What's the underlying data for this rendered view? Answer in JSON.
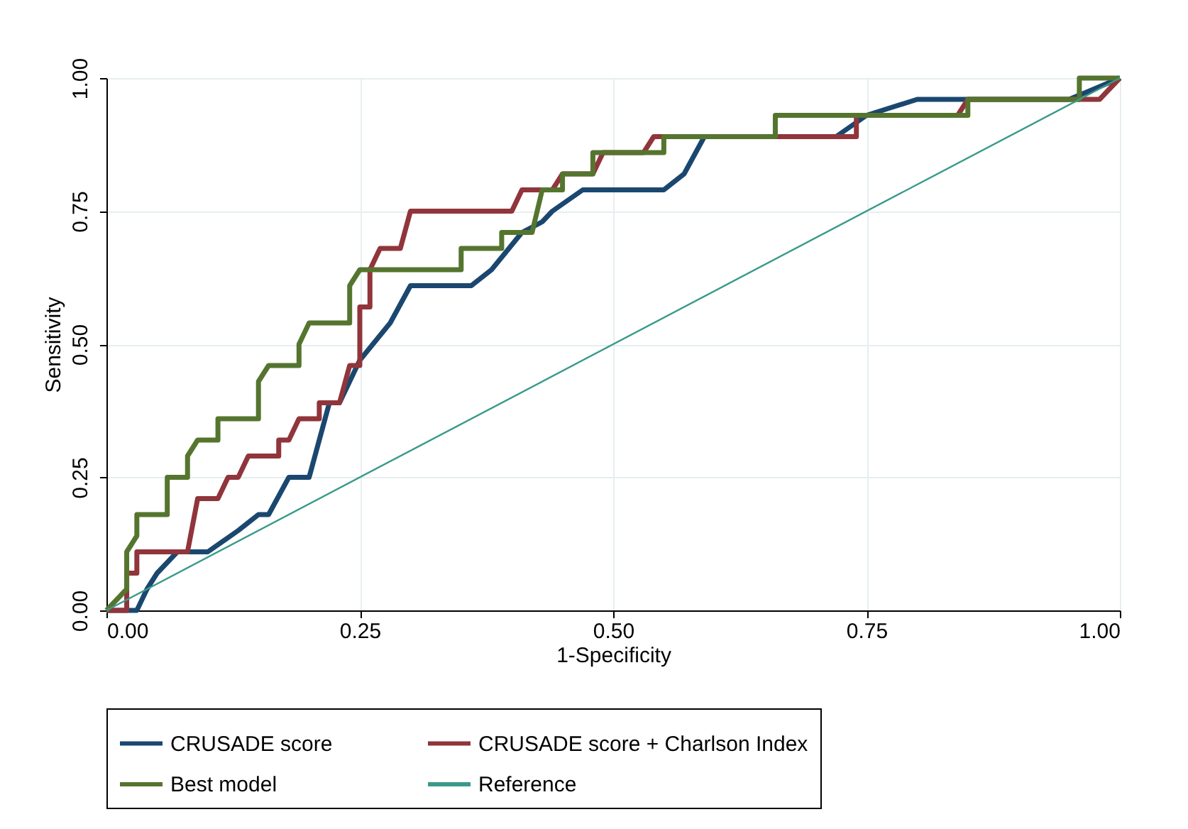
{
  "chart_data": {
    "type": "line",
    "xlabel": "1-Specificity",
    "ylabel": "Sensitivity",
    "xlim": [
      0,
      1
    ],
    "ylim": [
      0,
      1
    ],
    "xticks": [
      {
        "value": 0,
        "label": "0.00"
      },
      {
        "value": 0.25,
        "label": "0.25"
      },
      {
        "value": 0.5,
        "label": "0.50"
      },
      {
        "value": 0.75,
        "label": "0.75"
      },
      {
        "value": 1,
        "label": "1.00"
      }
    ],
    "yticks": [
      {
        "value": 0,
        "label": "0.00"
      },
      {
        "value": 0.25,
        "label": "0.25"
      },
      {
        "value": 0.5,
        "label": "0.50"
      },
      {
        "value": 0.75,
        "label": "0.75"
      },
      {
        "value": 1,
        "label": "1.00"
      }
    ],
    "grid": true,
    "legend": "bottom",
    "marker": "none",
    "line_style": "solid",
    "series": [
      {
        "name": "CRUSADE score",
        "color": "#1a476f",
        "x": [
          0,
          0.03,
          0.04,
          0.05,
          0.07,
          0.1,
          0.13,
          0.15,
          0.16,
          0.18,
          0.2,
          0.22,
          0.23,
          0.25,
          0.28,
          0.3,
          0.36,
          0.38,
          0.41,
          0.43,
          0.44,
          0.47,
          0.55,
          0.57,
          0.59,
          0.72,
          0.75,
          0.8,
          0.95,
          1
        ],
        "values": [
          0,
          0,
          0.04,
          0.07,
          0.11,
          0.11,
          0.15,
          0.18,
          0.18,
          0.25,
          0.25,
          0.39,
          0.39,
          0.47,
          0.54,
          0.61,
          0.61,
          0.64,
          0.71,
          0.73,
          0.75,
          0.79,
          0.79,
          0.82,
          0.89,
          0.89,
          0.93,
          0.96,
          0.96,
          1
        ]
      },
      {
        "name": "CRUSADE score + Charlson Index",
        "color": "#90353b",
        "x": [
          0,
          0.02,
          0.02,
          0.03,
          0.03,
          0.08,
          0.09,
          0.11,
          0.12,
          0.13,
          0.14,
          0.17,
          0.17,
          0.18,
          0.19,
          0.21,
          0.21,
          0.23,
          0.24,
          0.25,
          0.25,
          0.26,
          0.26,
          0.27,
          0.29,
          0.3,
          0.4,
          0.41,
          0.44,
          0.45,
          0.48,
          0.49,
          0.53,
          0.54,
          0.74,
          0.74,
          0.84,
          0.85,
          0.96,
          0.98,
          1
        ],
        "values": [
          0,
          0,
          0.07,
          0.07,
          0.11,
          0.11,
          0.21,
          0.21,
          0.25,
          0.25,
          0.29,
          0.29,
          0.32,
          0.32,
          0.36,
          0.36,
          0.39,
          0.39,
          0.46,
          0.46,
          0.57,
          0.57,
          0.64,
          0.68,
          0.68,
          0.75,
          0.75,
          0.79,
          0.79,
          0.82,
          0.82,
          0.86,
          0.86,
          0.89,
          0.89,
          0.93,
          0.93,
          0.96,
          0.96,
          0.96,
          1
        ]
      },
      {
        "name": "Best model",
        "color": "#55752f",
        "x": [
          0,
          0.02,
          0.02,
          0.03,
          0.03,
          0.06,
          0.06,
          0.08,
          0.08,
          0.09,
          0.11,
          0.11,
          0.15,
          0.15,
          0.16,
          0.19,
          0.19,
          0.2,
          0.24,
          0.24,
          0.25,
          0.35,
          0.35,
          0.39,
          0.39,
          0.42,
          0.43,
          0.45,
          0.45,
          0.48,
          0.48,
          0.55,
          0.55,
          0.66,
          0.66,
          0.85,
          0.85,
          0.96,
          0.96,
          1
        ],
        "values": [
          0,
          0.04,
          0.11,
          0.14,
          0.18,
          0.18,
          0.25,
          0.25,
          0.29,
          0.32,
          0.32,
          0.36,
          0.36,
          0.43,
          0.46,
          0.46,
          0.5,
          0.54,
          0.54,
          0.61,
          0.64,
          0.64,
          0.68,
          0.68,
          0.71,
          0.71,
          0.79,
          0.79,
          0.82,
          0.82,
          0.86,
          0.86,
          0.89,
          0.89,
          0.93,
          0.93,
          0.96,
          0.96,
          1,
          1
        ]
      },
      {
        "name": "Reference",
        "color": "#3a9a8a",
        "x": [
          0,
          1
        ],
        "values": [
          0,
          1
        ]
      }
    ]
  }
}
